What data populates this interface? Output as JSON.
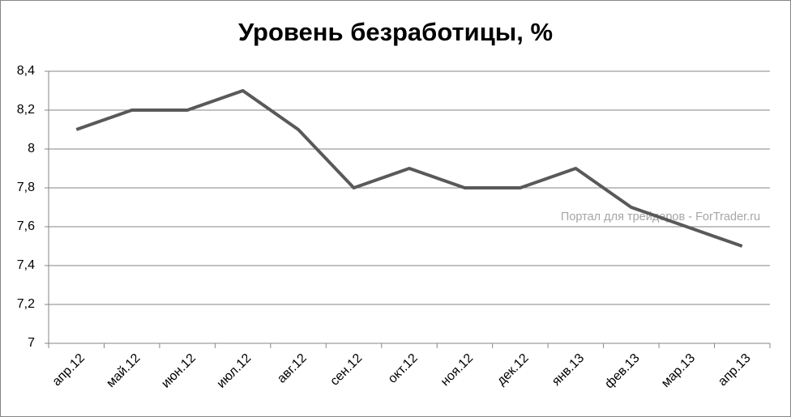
{
  "chart_data": {
    "type": "line",
    "title": "Уровень безработицы, %",
    "categories": [
      "апр.12",
      "май.12",
      "июн.12",
      "июл.12",
      "авг.12",
      "сен.12",
      "окт.12",
      "ноя.12",
      "дек.12",
      "янв.13",
      "фев.13",
      "мар.13",
      "апр.13"
    ],
    "values": [
      8.1,
      8.2,
      8.2,
      8.3,
      8.1,
      7.8,
      7.9,
      7.8,
      7.8,
      7.9,
      7.7,
      7.6,
      7.5
    ],
    "color": "#595959",
    "ylim": [
      7,
      8.4
    ],
    "yticks": [
      7,
      {
        "value": 7.2,
        "label": "7,2"
      },
      {
        "value": 7.4,
        "label": "7,4"
      },
      {
        "value": 7.6,
        "label": "7,6"
      },
      {
        "value": 7.8,
        "label": "7,8"
      },
      8,
      {
        "value": 8.2,
        "label": "8,2"
      },
      {
        "value": 8.4,
        "label": "8,4"
      }
    ],
    "grid": true,
    "annotation": "Портал для трейдеров - ForTrader.ru"
  }
}
